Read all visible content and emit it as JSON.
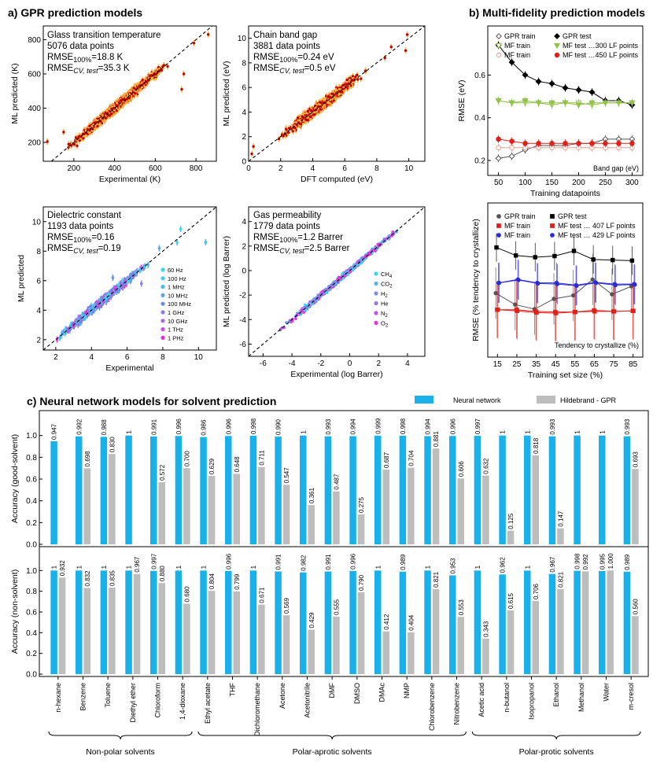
{
  "section_titles": {
    "a": "a) GPR prediction models",
    "b": "b) Multi-fidelity prediction models",
    "c": "c) Neural network models for solvent prediction"
  },
  "chart_data": [
    {
      "id": "tg",
      "type": "scatter",
      "title": "Glass transition temperature",
      "annotation": [
        "5076 data points",
        "RMSE100%=18.8 K",
        "RMSECV, test=35.3 K"
      ],
      "xlabel": "Experimental (K)",
      "ylabel": "ML predicted (K)",
      "xlim": [
        50,
        900
      ],
      "ylim": [
        90,
        880
      ],
      "xticks": [
        200,
        400,
        600,
        800
      ],
      "yticks": [
        200,
        400,
        600,
        800
      ],
      "trend": {
        "x_range": [
          150,
          700
        ],
        "slope": 1.0,
        "noise": 22
      },
      "outliers": [
        [
          70,
          205
        ],
        [
          740,
          600
        ],
        [
          730,
          510
        ],
        [
          860,
          830
        ],
        [
          790,
          780
        ],
        [
          150,
          260
        ]
      ],
      "colors": {
        "point": "#c00000",
        "errorbar": "#f5b442"
      }
    },
    {
      "id": "bandgap",
      "type": "scatter",
      "title": "Chain band gap",
      "annotation": [
        "3881 data points",
        "RMSE100%=0.24 eV",
        "RMSECV, test=0.5 eV"
      ],
      "xlabel": "DFT computed (eV)",
      "ylabel": "ML predicted (eV)",
      "xlim": [
        0,
        11
      ],
      "ylim": [
        0,
        11
      ],
      "xticks": [
        0,
        2,
        4,
        6,
        8,
        10
      ],
      "yticks": [
        0,
        2,
        4,
        6,
        8,
        10
      ],
      "trend": {
        "x_range": [
          1.5,
          7.5
        ],
        "slope": 1.0,
        "noise": 0.35
      },
      "outliers": [
        [
          0.3,
          1.2
        ],
        [
          0.2,
          0.6
        ],
        [
          8.5,
          8.4
        ],
        [
          9.8,
          9.0
        ],
        [
          9.9,
          10.3
        ],
        [
          8.9,
          9.3
        ]
      ],
      "colors": {
        "point": "#c00000",
        "errorbar": "#f5b442"
      }
    },
    {
      "id": "dielectric",
      "type": "scatter",
      "title": "Dielectric constant",
      "annotation": [
        "1193 data points",
        "RMSE100%=0.16",
        "RMSECV, test=0.19"
      ],
      "xlabel": "Experimental",
      "ylabel": "ML predicted",
      "xlim": [
        1.3,
        11
      ],
      "ylim": [
        1.3,
        11
      ],
      "xticks": [
        2,
        4,
        6,
        8,
        10
      ],
      "yticks": [
        2,
        4,
        6,
        8,
        10
      ],
      "legend": [
        "60 Hz",
        "100 Hz",
        "1 MHz",
        "10 MHz",
        "100 MHz",
        "1 GHz",
        "10 GHz",
        "1 THz",
        "1 PHz"
      ],
      "legend_colors": [
        "#3cd6f0",
        "#48c8f5",
        "#4fb8f0",
        "#5aa6e8",
        "#6a8fe0",
        "#8a7ee2",
        "#a06ee0",
        "#c050e6",
        "#e830e0"
      ],
      "trend": {
        "x_range": [
          1.7,
          7.5
        ],
        "slope": 1.0,
        "noise": 0.2
      },
      "outliers": [
        [
          9.0,
          9.5
        ],
        [
          8.8,
          8.6
        ],
        [
          10.4,
          8.6
        ],
        [
          7.8,
          8.2
        ],
        [
          5.2,
          6.2
        ],
        [
          6.8,
          5.8
        ]
      ]
    },
    {
      "id": "gas",
      "type": "scatter",
      "title": "Gas permeability",
      "annotation": [
        "1779 data points",
        "RMSE100%=1.2 Barrer",
        "RMSECV, test=2.5 Barrer"
      ],
      "xlabel": "Experimental (log Barrer)",
      "ylabel": "ML predicted (log Barrer)",
      "xlim": [
        -7,
        5.2
      ],
      "ylim": [
        -7,
        5.2
      ],
      "xticks": [
        -6,
        -4,
        -2,
        0,
        2,
        4
      ],
      "yticks": [
        -6,
        -4,
        -2,
        0,
        2,
        4
      ],
      "legend": [
        "CH4",
        "CO2",
        "H2",
        "He",
        "N2",
        "O2"
      ],
      "legend_sub": [
        "4",
        "2",
        "2",
        "",
        "2",
        "2"
      ],
      "legend_base": [
        "CH",
        "CO",
        "H",
        "He",
        "N",
        "O"
      ],
      "legend_colors": [
        "#3cd6f0",
        "#59b3ee",
        "#7a90e6",
        "#9b74e4",
        "#c050e6",
        "#e830e0"
      ],
      "trend": {
        "x_range": [
          -5.5,
          4.5
        ],
        "slope": 1.0,
        "noise": 0.18
      }
    },
    {
      "id": "mf_bandgap",
      "type": "line",
      "xlabel": "Training datapoints",
      "ylabel": "RMSE (eV)",
      "inner_label": "Band gap (eV)",
      "xlim": [
        30,
        320
      ],
      "ylim": [
        0.13,
        0.83
      ],
      "xticks": [
        50,
        100,
        150,
        200,
        250,
        300
      ],
      "yticks": [
        0.2,
        0.4,
        0.6
      ],
      "x": [
        50,
        75,
        100,
        125,
        150,
        175,
        200,
        225,
        250,
        275,
        300
      ],
      "series": [
        {
          "name": "GPR train",
          "values": [
            0.21,
            0.22,
            0.25,
            0.27,
            0.27,
            0.27,
            0.28,
            0.28,
            0.3,
            0.3,
            0.3
          ],
          "color": "#555555",
          "marker": "diamond-open"
        },
        {
          "name": "GPR test",
          "values": [
            0.74,
            0.66,
            0.6,
            0.57,
            0.56,
            0.54,
            0.53,
            0.52,
            0.48,
            0.48,
            0.46
          ],
          "color": "#000000",
          "marker": "diamond"
        },
        {
          "name": "MF train",
          "values": [
            0.48,
            0.47,
            0.47,
            0.47,
            0.46,
            0.47,
            0.47,
            0.46,
            0.47,
            0.47,
            0.47
          ],
          "color": "#92c24a",
          "marker": "triangle-open"
        },
        {
          "name": "MF test …300 LF points",
          "values": [
            0.48,
            0.47,
            0.48,
            0.47,
            0.47,
            0.47,
            0.46,
            0.47,
            0.47,
            0.47,
            0.47
          ],
          "color": "#92c24a",
          "marker": "triangle"
        },
        {
          "name": "MF train",
          "values": [
            0.26,
            0.26,
            0.26,
            0.26,
            0.26,
            0.26,
            0.26,
            0.26,
            0.26,
            0.26,
            0.26
          ],
          "color": "#e8a090",
          "marker": "circle-open"
        },
        {
          "name": "MF test …450 LF points",
          "values": [
            0.3,
            0.29,
            0.28,
            0.28,
            0.28,
            0.28,
            0.28,
            0.28,
            0.28,
            0.28,
            0.28
          ],
          "color": "#e0201a",
          "marker": "circle"
        }
      ]
    },
    {
      "id": "mf_crystal",
      "type": "line",
      "xlabel": "Training set size (%)",
      "ylabel": "RMSE (% tendency to crystallize)",
      "inner_label": "Tendency to crystallize (%)",
      "xlim": [
        10,
        90
      ],
      "ylim": [
        0,
        27
      ],
      "xticks": [
        15,
        25,
        35,
        45,
        55,
        65,
        75,
        85
      ],
      "yticks": [],
      "x": [
        15,
        25,
        35,
        45,
        55,
        65,
        75,
        85
      ],
      "series": [
        {
          "name": "GPR train",
          "values": [
            11.2,
            9.2,
            8.4,
            10.2,
            10.8,
            13.6,
            11.0,
            12.4
          ],
          "color": "#555555",
          "marker": "circle",
          "err": 4.5
        },
        {
          "name": "GPR test",
          "values": [
            19.2,
            17.8,
            17.5,
            17.7,
            18.6,
            17.1,
            17.0,
            16.9
          ],
          "color": "#000000",
          "marker": "square",
          "err": 2.5
        },
        {
          "name": "MF train",
          "values": [
            8.3,
            8.3,
            8.0,
            7.9,
            7.9,
            8.2,
            8.0,
            8.1
          ],
          "color": "#e0201a",
          "marker": "square",
          "err": 5.0
        },
        {
          "name": "MF test … 407 LF points",
          "values": [
            8.3,
            8.1,
            7.8,
            7.7,
            7.9,
            8.0,
            8.0,
            8.1
          ],
          "color": "#e0201a",
          "marker": "square",
          "err": 5.0
        },
        {
          "name": "MF train",
          "values": [
            13.0,
            13.6,
            13.0,
            13.0,
            12.6,
            13.1,
            12.8,
            12.8
          ],
          "color": "#2b2bd8",
          "marker": "circle",
          "err": 3.5
        },
        {
          "name": "MF test … 429 LF points",
          "values": [
            13.0,
            13.5,
            12.9,
            12.8,
            12.5,
            13.0,
            12.6,
            12.7
          ],
          "color": "#2b2bd8",
          "marker": "circle",
          "err": 3.5
        }
      ]
    },
    {
      "id": "solvent",
      "type": "bar",
      "categories": [
        "n-hexane",
        "Benzene",
        "Toluene",
        "Diethyl ether",
        "Chloroform",
        "1,4-dioxane",
        "Ethyl acetate",
        "THF",
        "Dichloromethane",
        "Acetone",
        "Acetonitrile",
        "DMF",
        "DMSO",
        "DMAc",
        "NMP",
        "Chlorobenzene",
        "Nitrobenzene",
        "Acetic acid",
        "n-butanol",
        "Isopropanol",
        "Ethanol",
        "Methanol",
        "Water",
        "m-cresol"
      ],
      "groups": [
        {
          "label": "Non-polar solvents",
          "from": 0,
          "to": 5
        },
        {
          "label": "Polar-aprotic solvents",
          "from": 6,
          "to": 16
        },
        {
          "label": "Polar-protic solvents",
          "from": 17,
          "to": 23
        }
      ],
      "legend": [
        "Neural network",
        "Hildebrand - GPR"
      ],
      "colors": {
        "nn": "#1ab0ea",
        "hildebrand": "#bdbdbd"
      },
      "ylim": [
        0,
        1.2
      ],
      "yticks": [
        0.0,
        0.2,
        0.4,
        0.6,
        0.8,
        1.0
      ],
      "panels": [
        {
          "ylabel": "Accuracy (good-solvent)",
          "nn": [
            "0.947",
            "0.992",
            "0.988",
            "1",
            "0.991",
            "0.996",
            "0.986",
            "0.996",
            "0.998",
            "0.990",
            "1",
            "0.993",
            "0.994",
            "0.999",
            "0.998",
            "0.994",
            "0.996",
            "0.997",
            "1",
            "1",
            "0.993",
            "1",
            "1",
            "0.993"
          ],
          "hildebrand": [
            "",
            "0.698",
            "0.830",
            "",
            "0.572",
            "0.700",
            "0.629",
            "0.648",
            "0.711",
            "0.547",
            "0.361",
            "0.487",
            "0.275",
            "0.687",
            "0.704",
            "0.881",
            "0.606",
            "0.632",
            "0.125",
            "0.818",
            "0.147",
            "",
            "",
            "0.693"
          ]
        },
        {
          "ylabel": "Accuracy (non-solvent)",
          "nn": [
            "1",
            "1",
            "1",
            "1",
            "0.997",
            "1",
            "1",
            "0.996",
            "1",
            "0.991",
            "0.982",
            "0.991",
            "0.996",
            "1",
            "0.989",
            "1",
            "0.953",
            "1",
            "0.962",
            "1",
            "0.967",
            "0.998",
            "0.995",
            "0.989"
          ],
          "hildebrand": [
            "0.932",
            "0.832",
            "0.835",
            "0.967",
            "0.880",
            "0.680",
            "0.804",
            "0.799",
            "0.671",
            "0.569",
            "0.429",
            "0.555",
            "0.790",
            "0.412",
            "0.404",
            "0.821",
            "0.553",
            "0.343",
            "0.615",
            "0.706",
            "0.821",
            "0.992",
            "1.000",
            "0.560"
          ]
        }
      ]
    }
  ]
}
